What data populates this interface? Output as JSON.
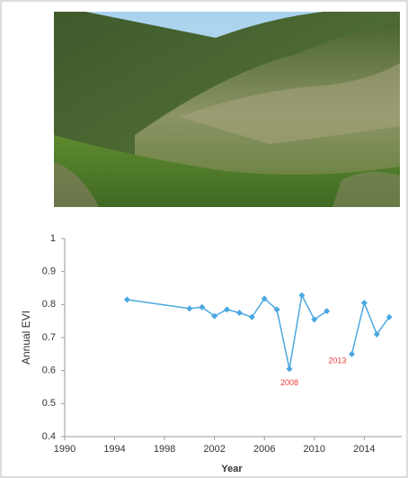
{
  "chart_data": {
    "type": "line",
    "x_label": "Year",
    "y_label": "Annual EVI",
    "x": [
      1995,
      2000,
      2001,
      2002,
      2003,
      2004,
      2005,
      2006,
      2007,
      2008,
      2009,
      2010,
      2011,
      2012,
      2013,
      2014,
      2015,
      2016
    ],
    "series": [
      {
        "name": "Annual EVI",
        "color": "#4aa8e0",
        "values": [
          0.815,
          0.788,
          0.792,
          0.765,
          0.785,
          0.775,
          0.762,
          0.818,
          0.785,
          0.605,
          0.828,
          0.755,
          0.78,
          null,
          0.65,
          0.805,
          0.71,
          0.762
        ]
      }
    ],
    "annotations": [
      {
        "text": "2008",
        "x": 2008,
        "color": "#e8403a"
      },
      {
        "text": "2013",
        "x": 2013,
        "color": "#e8403a"
      }
    ],
    "xlim": [
      1990,
      2017
    ],
    "xticks": [
      1990,
      1994,
      1998,
      2002,
      2006,
      2010,
      2014
    ],
    "ylim": [
      0.4,
      1
    ],
    "yticks": [
      0.4,
      0.5,
      0.6,
      0.7,
      0.8,
      0.9,
      1
    ],
    "grid": false
  }
}
